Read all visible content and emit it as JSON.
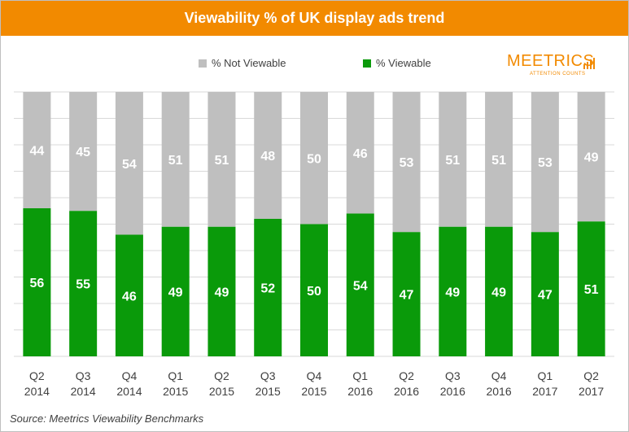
{
  "title": "Viewability % of UK display ads trend",
  "source": "Source: Meetrics Viewability Benchmarks",
  "logo": {
    "name": "MEETRICS",
    "tagline": "ATTENTION COUNTS"
  },
  "legend": {
    "not_viewable": "% Not Viewable",
    "viewable": "% Viewable"
  },
  "colors": {
    "title_bar": "#f28a00",
    "not_viewable": "#bfbfbf",
    "viewable": "#0a9a0a",
    "grid": "#d9d9d9"
  },
  "chart_data": {
    "type": "bar",
    "stacked": true,
    "categories": [
      [
        "Q2",
        "2014"
      ],
      [
        "Q3",
        "2014"
      ],
      [
        "Q4",
        "2014"
      ],
      [
        "Q1",
        "2015"
      ],
      [
        "Q2",
        "2015"
      ],
      [
        "Q3",
        "2015"
      ],
      [
        "Q4",
        "2015"
      ],
      [
        "Q1",
        "2016"
      ],
      [
        "Q2",
        "2016"
      ],
      [
        "Q3",
        "2016"
      ],
      [
        "Q4",
        "2016"
      ],
      [
        "Q1",
        "2017"
      ],
      [
        "Q2",
        "2017"
      ]
    ],
    "series": [
      {
        "name": "% Viewable",
        "values": [
          56,
          55,
          46,
          49,
          49,
          52,
          50,
          54,
          47,
          49,
          49,
          47,
          51
        ]
      },
      {
        "name": "% Not Viewable",
        "values": [
          44,
          45,
          54,
          51,
          51,
          48,
          50,
          46,
          53,
          51,
          51,
          53,
          49
        ]
      }
    ],
    "ylim": [
      0,
      100
    ],
    "grid": true,
    "legend_position": "top",
    "data_labels": true
  }
}
